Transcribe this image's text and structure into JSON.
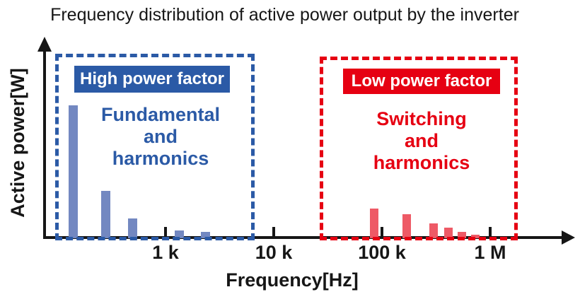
{
  "chart_data": {
    "type": "bar",
    "title": "Frequency distribution of active power output by the inverter",
    "xlabel": "Frequency[Hz]",
    "ylabel": "Active power[W]",
    "grid": false,
    "legend": "none",
    "x_axis": {
      "scale": "log",
      "ticks": [
        {
          "label": "1 k",
          "value": 1000
        },
        {
          "label": "10 k",
          "value": 10000
        },
        {
          "label": "100 k",
          "value": 100000
        },
        {
          "label": "1 M",
          "value": 1000000
        }
      ]
    },
    "y_axis": {
      "label": "Active power[W]",
      "tick_labels": "none",
      "scale": "relative, 0-100 (% of axis height)"
    },
    "series": [
      {
        "name": "Fundamental and harmonics",
        "region": "High power factor",
        "color": "#7388c1",
        "points": [
          {
            "freq_hz": 140,
            "power_rel": 67
          },
          {
            "freq_hz": 280,
            "power_rel": 24
          },
          {
            "freq_hz": 500,
            "power_rel": 10
          },
          {
            "freq_hz": 1350,
            "power_rel": 4
          },
          {
            "freq_hz": 2350,
            "power_rel": 3.2
          }
        ]
      },
      {
        "name": "Switching and harmonics",
        "region": "Low power factor",
        "color": "#ee5a66",
        "points": [
          {
            "freq_hz": 85000,
            "power_rel": 15
          },
          {
            "freq_hz": 170000,
            "power_rel": 12
          },
          {
            "freq_hz": 300000,
            "power_rel": 7.5
          },
          {
            "freq_hz": 410000,
            "power_rel": 5.4
          },
          {
            "freq_hz": 545000,
            "power_rel": 3.2
          },
          {
            "freq_hz": 730000,
            "power_rel": 1.9
          }
        ]
      }
    ],
    "regions": [
      {
        "label": "High power factor",
        "description": "Fundamental\nand\nharmonics",
        "color": "#2b5aa6",
        "freq_span_hz": [
          95,
          6600
        ]
      },
      {
        "label": "Low power factor",
        "description": "Switching\nand\nharmonics",
        "color": "#e60012",
        "freq_span_hz": [
          27000,
          1800000
        ]
      }
    ]
  },
  "colors": {
    "axis": "#161616",
    "high_power_factor_blue": "#2b5aa6",
    "blue_bar": "#7388c1",
    "low_power_factor_red": "#e60012",
    "red_bar": "#ee5a66",
    "background": "#ffffff"
  }
}
